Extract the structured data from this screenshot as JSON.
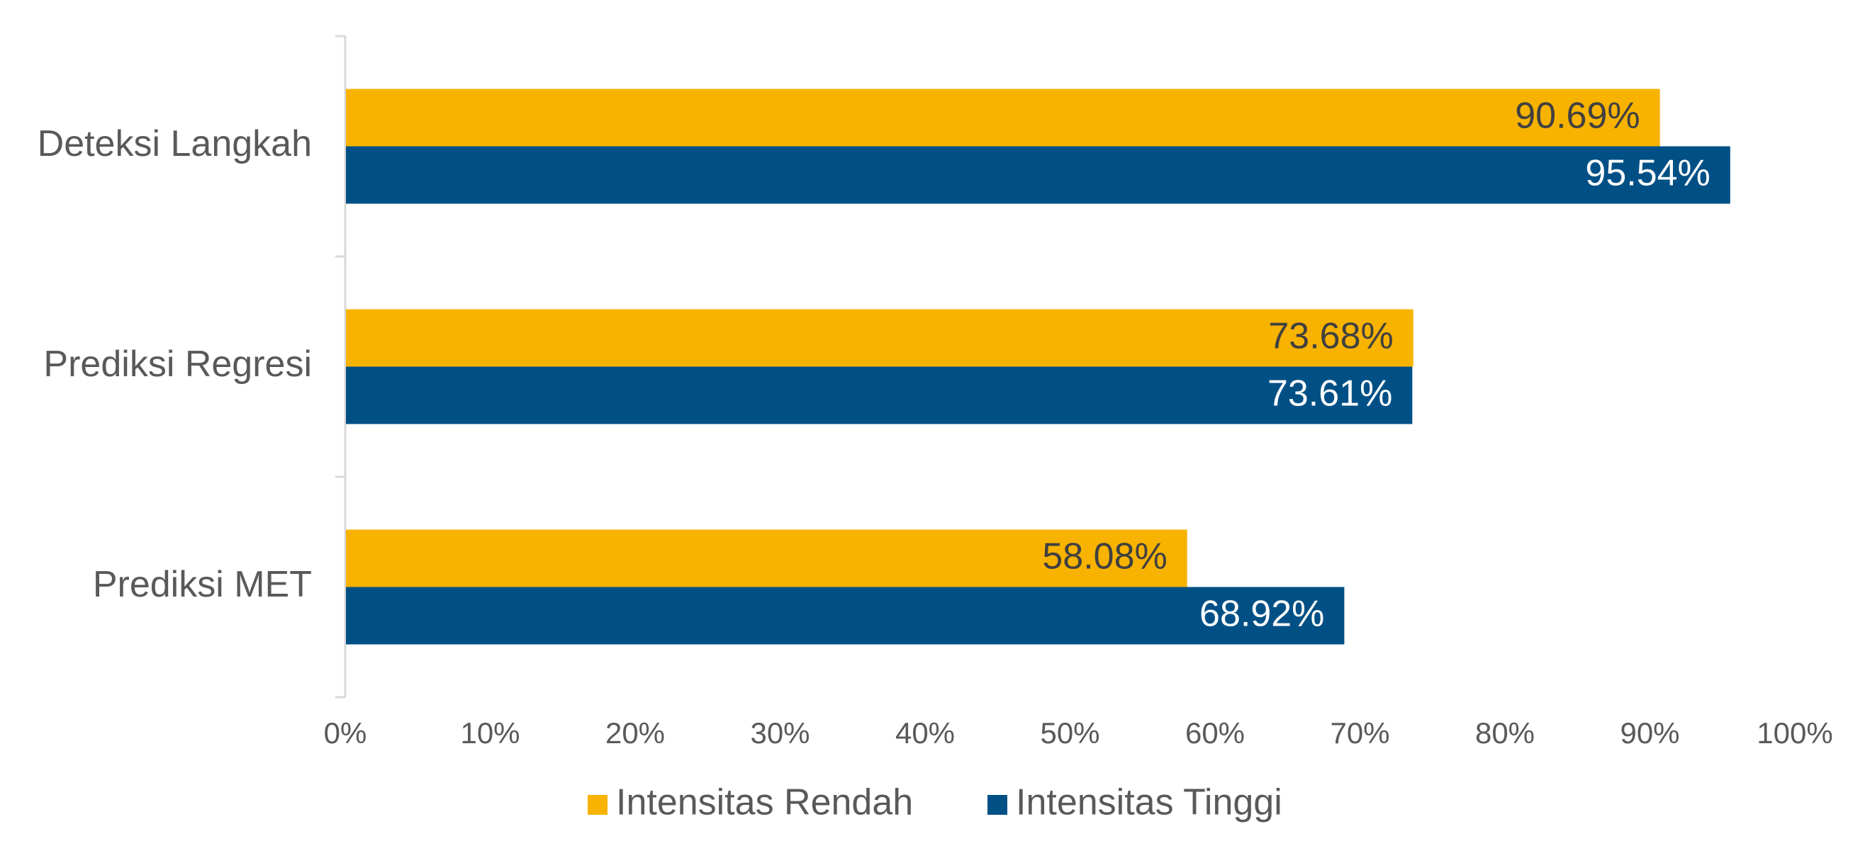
{
  "chart_data": {
    "type": "bar",
    "orientation": "horizontal",
    "categories": [
      "Deteksi Langkah",
      "Prediksi Regresi",
      "Prediksi MET"
    ],
    "series": [
      {
        "name": "Intensitas Rendah",
        "color": "#F8B300",
        "values": [
          90.69,
          73.68,
          58.08
        ],
        "labels": [
          "90.69%",
          "73.68%",
          "58.08%"
        ]
      },
      {
        "name": "Intensitas Tinggi",
        "color": "#005085",
        "values": [
          95.54,
          73.61,
          68.92
        ],
        "labels": [
          "95.54%",
          "73.61%",
          "68.92%"
        ]
      }
    ],
    "xlim": [
      0,
      100
    ],
    "x_ticks": [
      "0%",
      "10%",
      "20%",
      "30%",
      "40%",
      "50%",
      "60%",
      "70%",
      "80%",
      "90%",
      "100%"
    ],
    "grid": false,
    "legend_position": "bottom",
    "title": "",
    "xlabel": "",
    "ylabel": ""
  }
}
